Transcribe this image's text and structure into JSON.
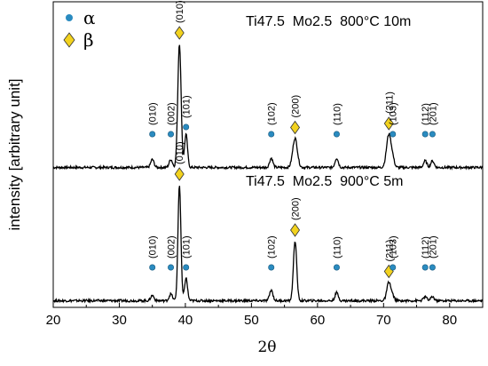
{
  "chart_data": {
    "type": "line",
    "xlabel": "2θ",
    "ylabel": "intensity [arbitrary unit]",
    "xlim": [
      20,
      85
    ],
    "x_ticks": [
      "20",
      "30",
      "40",
      "50",
      "60",
      "70",
      "80"
    ],
    "y_ticks": [],
    "grid": false,
    "legend": {
      "placement": "top-left",
      "entries": [
        {
          "symbol": "circle",
          "label": "α",
          "color": "#2A8BC0"
        },
        {
          "symbol": "diamond",
          "label": "β",
          "color": "#F2D21E"
        }
      ]
    },
    "series": [
      {
        "name": "Ti47.5  Mo2.5  800°C 10m",
        "offset": 1.0,
        "baseline": 0.03,
        "peaks": [
          {
            "x": 35.0,
            "height": 0.06,
            "width": 0.25,
            "phase": "alpha",
            "label": "(010)"
          },
          {
            "x": 37.8,
            "height": 0.06,
            "width": 0.25,
            "phase": "alpha",
            "label": "(002)"
          },
          {
            "x": 39.1,
            "height": 0.93,
            "width": 0.25,
            "phase": "beta",
            "label": "(010)"
          },
          {
            "x": 40.1,
            "height": 0.25,
            "width": 0.22,
            "phase": "alpha",
            "label": "(101)"
          },
          {
            "x": 53.0,
            "height": 0.07,
            "width": 0.25,
            "phase": "alpha",
            "label": "(102)"
          },
          {
            "x": 56.6,
            "height": 0.22,
            "width": 0.35,
            "phase": "beta",
            "label": "(200)"
          },
          {
            "x": 62.9,
            "height": 0.07,
            "width": 0.25,
            "phase": "alpha",
            "label": "(110)"
          },
          {
            "x": 70.8,
            "height": 0.25,
            "width": 0.35,
            "phase": "beta",
            "label": "(211)"
          },
          {
            "x": 71.4,
            "height": 0.05,
            "width": 0.25,
            "phase": "alpha",
            "label": "(103)"
          },
          {
            "x": 76.3,
            "height": 0.05,
            "width": 0.25,
            "phase": "alpha",
            "label": "(112)"
          },
          {
            "x": 77.4,
            "height": 0.05,
            "width": 0.25,
            "phase": "alpha",
            "label": "(201)"
          }
        ]
      },
      {
        "name": "Ti47.5  Mo2.5  900°C 5m",
        "offset": 0.0,
        "baseline": 0.03,
        "peaks": [
          {
            "x": 35.0,
            "height": 0.04,
            "width": 0.25,
            "phase": "alpha",
            "label": "(010)"
          },
          {
            "x": 37.8,
            "height": 0.05,
            "width": 0.25,
            "phase": "alpha",
            "label": "(002)"
          },
          {
            "x": 39.1,
            "height": 0.87,
            "width": 0.22,
            "phase": "beta",
            "label": "(010)"
          },
          {
            "x": 40.1,
            "height": 0.17,
            "width": 0.22,
            "phase": "alpha",
            "label": "(101)"
          },
          {
            "x": 53.0,
            "height": 0.08,
            "width": 0.25,
            "phase": "alpha",
            "label": "(102)"
          },
          {
            "x": 56.6,
            "height": 0.45,
            "width": 0.25,
            "phase": "beta",
            "label": "(200)"
          },
          {
            "x": 62.9,
            "height": 0.06,
            "width": 0.25,
            "phase": "alpha",
            "label": "(110)"
          },
          {
            "x": 70.8,
            "height": 0.14,
            "width": 0.3,
            "phase": "beta",
            "label": "(211)"
          },
          {
            "x": 71.4,
            "height": 0.03,
            "width": 0.25,
            "phase": "alpha",
            "label": "(103)"
          },
          {
            "x": 76.3,
            "height": 0.03,
            "width": 0.25,
            "phase": "alpha",
            "label": "(112)"
          },
          {
            "x": 77.4,
            "height": 0.03,
            "width": 0.25,
            "phase": "alpha",
            "label": "(201)"
          }
        ]
      }
    ]
  },
  "colors": {
    "alpha_marker": "#2A8BC0",
    "beta_marker": "#F2D21E",
    "line": "#000000"
  }
}
